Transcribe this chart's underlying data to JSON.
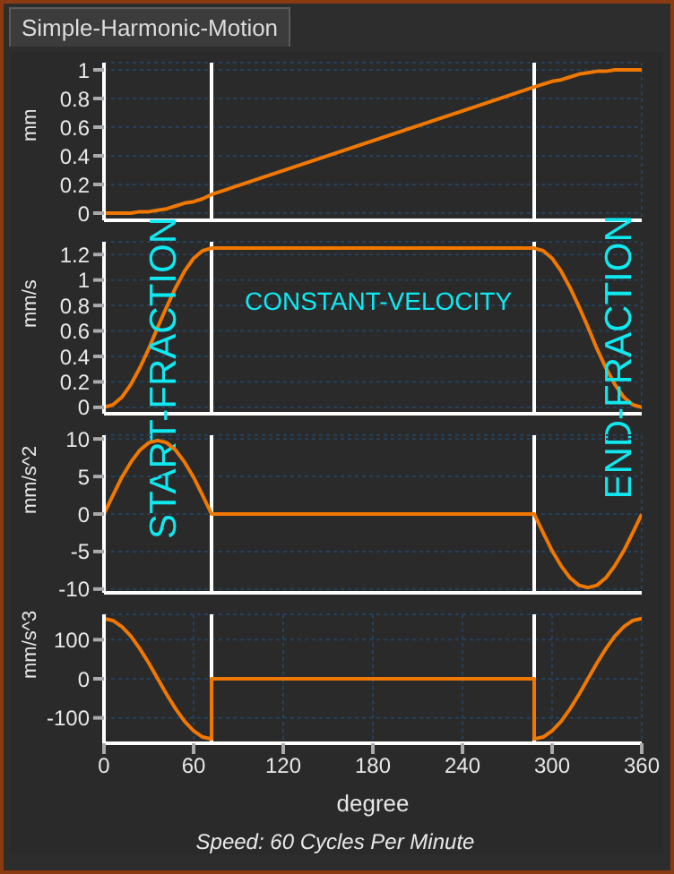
{
  "chart_data": [
    {
      "type": "line",
      "title": "Simple-Harmonic-Motion",
      "ylabel": "mm",
      "xlim": [
        0,
        360
      ],
      "xticks": [
        0,
        60,
        120,
        180,
        240,
        300,
        360
      ],
      "ylim": [
        -0.05,
        1.05
      ],
      "yticks": [
        0,
        0.2,
        0.4,
        0.6,
        0.8,
        1
      ],
      "grid": true,
      "marker": "none",
      "tick_labels": "y",
      "ref_lines": [
        {
          "axis": "x",
          "value": 72,
          "color": "#ffffff"
        },
        {
          "axis": "x",
          "value": 288,
          "color": "#ffffff"
        }
      ],
      "x": [
        0,
        6,
        12,
        18,
        24,
        30,
        36,
        42,
        48,
        54,
        60,
        66,
        72,
        288,
        294,
        300,
        306,
        312,
        318,
        324,
        330,
        336,
        342,
        348,
        354,
        360
      ],
      "series": [
        {
          "color": "#f07800",
          "values": [
            0,
            0,
            0,
            0,
            0.01,
            0.01,
            0.02,
            0.03,
            0.05,
            0.07,
            0.08,
            0.1,
            0.13,
            0.88,
            0.9,
            0.92,
            0.93,
            0.95,
            0.97,
            0.98,
            0.99,
            0.99,
            1,
            1,
            1,
            1
          ]
        }
      ]
    },
    {
      "type": "line",
      "ylabel": "mm/s",
      "xlim": [
        0,
        360
      ],
      "xticks": [
        0,
        60,
        120,
        180,
        240,
        300,
        360
      ],
      "ylim": [
        -0.05,
        1.3
      ],
      "yticks": [
        0,
        0.2,
        0.4,
        0.6,
        0.8,
        1,
        1.2
      ],
      "grid": true,
      "marker": "none",
      "tick_labels": "y",
      "annotations": [
        "START-FRACTION",
        "CONSTANT-VELOCITY",
        "END-FRACTION"
      ],
      "ref_lines": [
        {
          "axis": "x",
          "value": 72,
          "color": "#ffffff"
        },
        {
          "axis": "x",
          "value": 288,
          "color": "#ffffff"
        }
      ],
      "x": [
        0,
        6,
        12,
        18,
        24,
        30,
        36,
        42,
        48,
        54,
        60,
        66,
        72,
        288,
        294,
        300,
        306,
        312,
        318,
        324,
        330,
        336,
        342,
        348,
        354,
        360
      ],
      "series": [
        {
          "color": "#f07800",
          "values": [
            0,
            0.02,
            0.08,
            0.18,
            0.31,
            0.46,
            0.63,
            0.79,
            0.94,
            1.07,
            1.17,
            1.23,
            1.25,
            1.25,
            1.23,
            1.17,
            1.07,
            0.94,
            0.79,
            0.63,
            0.46,
            0.31,
            0.18,
            0.08,
            0.02,
            0
          ]
        }
      ]
    },
    {
      "type": "line",
      "ylabel": "mm/s^2",
      "xlim": [
        0,
        360
      ],
      "xticks": [
        0,
        60,
        120,
        180,
        240,
        300,
        360
      ],
      "ylim": [
        -10.5,
        10.5
      ],
      "yticks": [
        -10,
        -5,
        0,
        5,
        10
      ],
      "grid": true,
      "marker": "none",
      "tick_labels": "y",
      "ref_lines": [
        {
          "axis": "x",
          "value": 72,
          "color": "#ffffff"
        },
        {
          "axis": "x",
          "value": 288,
          "color": "#ffffff"
        }
      ],
      "x": [
        0,
        6,
        12,
        18,
        24,
        30,
        36,
        42,
        48,
        54,
        60,
        66,
        72,
        288,
        294,
        300,
        306,
        312,
        318,
        324,
        330,
        336,
        342,
        348,
        354,
        360
      ],
      "series": [
        {
          "color": "#f07800",
          "values": [
            0,
            2.5,
            4.9,
            6.9,
            8.5,
            9.5,
            9.8,
            9.5,
            8.5,
            6.9,
            4.9,
            2.5,
            0,
            0,
            -2.5,
            -4.9,
            -6.9,
            -8.5,
            -9.5,
            -9.8,
            -9.5,
            -8.5,
            -6.9,
            -4.9,
            -2.5,
            0
          ]
        }
      ]
    },
    {
      "type": "line",
      "ylabel": "mm/s^3",
      "xlabel": "degree",
      "xlim": [
        0,
        360
      ],
      "xticks": [
        0,
        60,
        120,
        180,
        240,
        300,
        360
      ],
      "ylim": [
        -165,
        165
      ],
      "yticks": [
        -100,
        0,
        100
      ],
      "grid": true,
      "marker": "none",
      "annotations": [
        "Speed: 60 Cycles Per Minute"
      ],
      "ref_lines": [
        {
          "axis": "x",
          "value": 72,
          "color": "#ffffff"
        },
        {
          "axis": "x",
          "value": 288,
          "color": "#ffffff"
        }
      ],
      "x": [
        0,
        6,
        12,
        18,
        24,
        30,
        36,
        42,
        48,
        54,
        60,
        66,
        72,
        72,
        288,
        288,
        294,
        300,
        306,
        312,
        318,
        324,
        330,
        336,
        342,
        348,
        354,
        360
      ],
      "series": [
        {
          "color": "#f07800",
          "values": [
            154,
            149,
            133,
            109,
            77,
            40,
            0,
            -40,
            -77,
            -109,
            -133,
            -149,
            -154,
            0,
            0,
            -154,
            -149,
            -133,
            -109,
            -77,
            -40,
            0,
            40,
            77,
            109,
            133,
            149,
            154
          ]
        }
      ]
    }
  ]
}
